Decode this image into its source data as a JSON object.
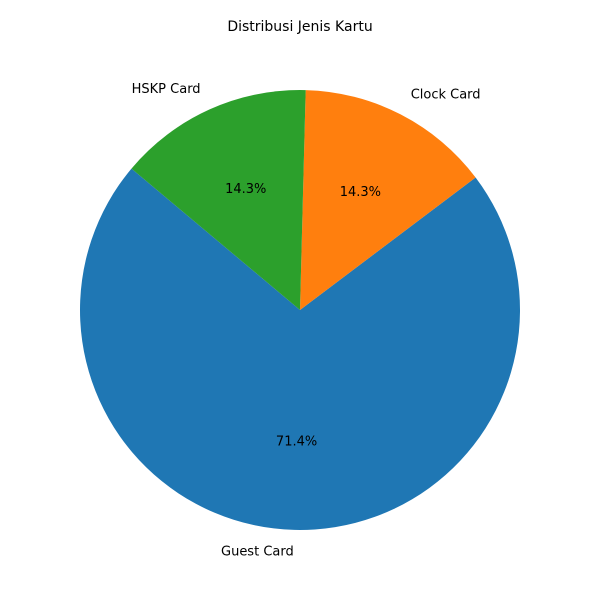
{
  "chart_data": {
    "type": "pie",
    "title": "Distribusi Jenis Kartu",
    "start_angle_deg": 140,
    "direction": "counterclockwise",
    "slices": [
      {
        "label": "Guest Card",
        "value": 71.4,
        "pct_label": "71.4%",
        "color": "#1f77b4"
      },
      {
        "label": "Clock Card",
        "value": 14.3,
        "pct_label": "14.3%",
        "color": "#ff7f0e"
      },
      {
        "label": "HSKP Card",
        "value": 14.3,
        "pct_label": "14.3%",
        "color": "#2ca02c"
      }
    ]
  }
}
